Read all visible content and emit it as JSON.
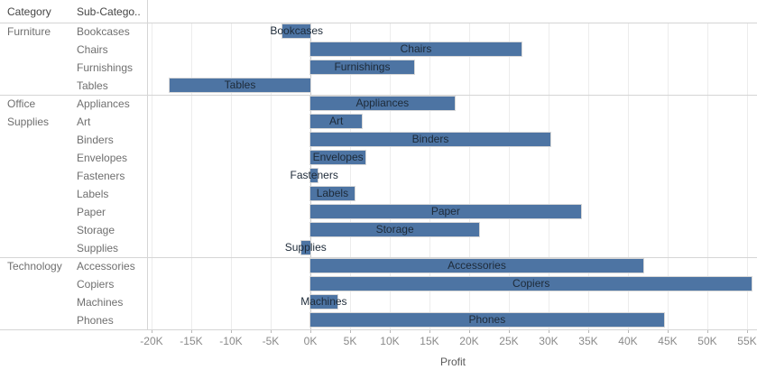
{
  "header": {
    "category_label": "Category",
    "subcategory_label": "Sub-Catego.."
  },
  "chart_data": {
    "type": "bar",
    "orientation": "horizontal",
    "title": "",
    "xlabel": "Profit",
    "ylabel": "",
    "xlim": [
      -20340,
      56250
    ],
    "grid": true,
    "x_ticks": [
      {
        "value": -20000,
        "label": "-20K"
      },
      {
        "value": -15000,
        "label": "-15K"
      },
      {
        "value": -10000,
        "label": "-10K"
      },
      {
        "value": -5000,
        "label": "-5K"
      },
      {
        "value": 0,
        "label": "0K"
      },
      {
        "value": 5000,
        "label": "5K"
      },
      {
        "value": 10000,
        "label": "10K"
      },
      {
        "value": 15000,
        "label": "15K"
      },
      {
        "value": 20000,
        "label": "20K"
      },
      {
        "value": 25000,
        "label": "25K"
      },
      {
        "value": 30000,
        "label": "30K"
      },
      {
        "value": 35000,
        "label": "35K"
      },
      {
        "value": 40000,
        "label": "40K"
      },
      {
        "value": 45000,
        "label": "45K"
      },
      {
        "value": 50000,
        "label": "50K"
      },
      {
        "value": 55000,
        "label": "55K"
      }
    ],
    "groups": [
      {
        "category": "Furniture",
        "rows": [
          {
            "label": "Bookcases",
            "value": -3473
          },
          {
            "label": "Chairs",
            "value": 26590
          },
          {
            "label": "Furnishings",
            "value": 13059
          },
          {
            "label": "Tables",
            "value": -17725
          }
        ]
      },
      {
        "category": "Office Supplies",
        "rows": [
          {
            "label": "Appliances",
            "value": 18138
          },
          {
            "label": "Art",
            "value": 6528
          },
          {
            "label": "Binders",
            "value": 30222
          },
          {
            "label": "Envelopes",
            "value": 6964
          },
          {
            "label": "Fasteners",
            "value": 950
          },
          {
            "label": "Labels",
            "value": 5546
          },
          {
            "label": "Paper",
            "value": 34054
          },
          {
            "label": "Storage",
            "value": 21279
          },
          {
            "label": "Supplies",
            "value": -1189
          }
        ]
      },
      {
        "category": "Technology",
        "rows": [
          {
            "label": "Accessories",
            "value": 41937
          },
          {
            "label": "Copiers",
            "value": 55618
          },
          {
            "label": "Machines",
            "value": 3385
          },
          {
            "label": "Phones",
            "value": 44516
          }
        ]
      }
    ]
  },
  "colors": {
    "bar_fill": "#4d74a3",
    "bar_border": "#d8d8d8",
    "bar_label": "#1d2a38",
    "row_label": "#6f6f6f",
    "header_label": "#454545",
    "axis_tick_label": "#8a8a8a",
    "axis_title": "#5a5a5a",
    "gridline": "#ececec",
    "zero_line": "#c9c9c9",
    "separator": "#d5d5d5",
    "background": "#ffffff"
  }
}
